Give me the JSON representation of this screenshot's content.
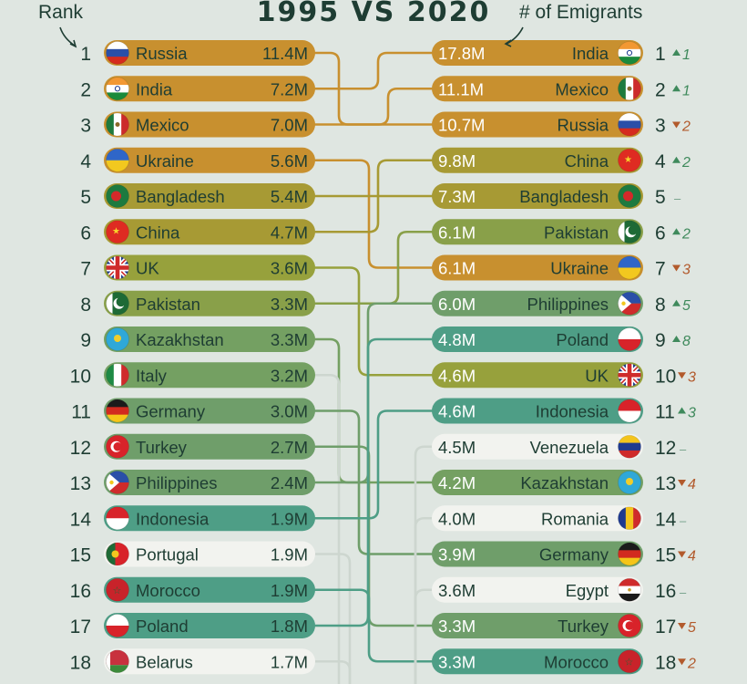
{
  "header": {
    "title": "1995 VS 2020",
    "rank_label": "Rank",
    "emigrants_label": "# of Emigrants"
  },
  "chart_data": {
    "type": "table",
    "title": "1995 VS 2020",
    "columns": [
      "Rank",
      "1995",
      "2020",
      "# of Emigrants"
    ],
    "left": [
      {
        "rank": "1",
        "country": "Russia",
        "value": "11.4M",
        "color": "#c8902f"
      },
      {
        "rank": "2",
        "country": "India",
        "value": "7.2M",
        "color": "#c8902f"
      },
      {
        "rank": "3",
        "country": "Mexico",
        "value": "7.0M",
        "color": "#c8902f"
      },
      {
        "rank": "4",
        "country": "Ukraine",
        "value": "5.6M",
        "color": "#c8902f"
      },
      {
        "rank": "5",
        "country": "Bangladesh",
        "value": "5.4M",
        "color": "#a79a34"
      },
      {
        "rank": "6",
        "country": "China",
        "value": "4.7M",
        "color": "#a79a34"
      },
      {
        "rank": "7",
        "country": "UK",
        "value": "3.6M",
        "color": "#97a13c"
      },
      {
        "rank": "8",
        "country": "Pakistan",
        "value": "3.3M",
        "color": "#89a049"
      },
      {
        "rank": "9",
        "country": "Kazakhstan",
        "value": "3.3M",
        "color": "#74a062"
      },
      {
        "rank": "10",
        "country": "Italy",
        "value": "3.2M",
        "color": "#74a062"
      },
      {
        "rank": "11",
        "country": "Germany",
        "value": "3.0M",
        "color": "#6f9e6a"
      },
      {
        "rank": "12",
        "country": "Turkey",
        "value": "2.7M",
        "color": "#6f9e6a"
      },
      {
        "rank": "13",
        "country": "Philippines",
        "value": "2.4M",
        "color": "#6f9e6a"
      },
      {
        "rank": "14",
        "country": "Indonesia",
        "value": "1.9M",
        "color": "#4e9e86"
      },
      {
        "rank": "15",
        "country": "Portugal",
        "value": "1.9M",
        "color": "#f2f3ef"
      },
      {
        "rank": "16",
        "country": "Morocco",
        "value": "1.9M",
        "color": "#4e9e86"
      },
      {
        "rank": "17",
        "country": "Poland",
        "value": "1.8M",
        "color": "#4e9e86"
      },
      {
        "rank": "18",
        "country": "Belarus",
        "value": "1.7M",
        "color": "#f2f3ef"
      }
    ],
    "right": [
      {
        "rank": "1",
        "country": "India",
        "value": "17.8M",
        "change": "1",
        "dir": "up",
        "color": "#c8902f"
      },
      {
        "rank": "2",
        "country": "Mexico",
        "value": "11.1M",
        "change": "1",
        "dir": "up",
        "color": "#c8902f"
      },
      {
        "rank": "3",
        "country": "Russia",
        "value": "10.7M",
        "change": "2",
        "dir": "down",
        "color": "#c8902f"
      },
      {
        "rank": "4",
        "country": "China",
        "value": "9.8M",
        "change": "2",
        "dir": "up",
        "color": "#a79a34"
      },
      {
        "rank": "5",
        "country": "Bangladesh",
        "value": "7.3M",
        "change": "–",
        "dir": "same",
        "color": "#a79a34"
      },
      {
        "rank": "6",
        "country": "Pakistan",
        "value": "6.1M",
        "change": "2",
        "dir": "up",
        "color": "#89a049"
      },
      {
        "rank": "7",
        "country": "Ukraine",
        "value": "6.1M",
        "change": "3",
        "dir": "down",
        "color": "#c8902f"
      },
      {
        "rank": "8",
        "country": "Philippines",
        "value": "6.0M",
        "change": "5",
        "dir": "up",
        "color": "#6f9e6a"
      },
      {
        "rank": "9",
        "country": "Poland",
        "value": "4.8M",
        "change": "8",
        "dir": "up",
        "color": "#4e9e86"
      },
      {
        "rank": "10",
        "country": "UK",
        "value": "4.6M",
        "change": "3",
        "dir": "down",
        "color": "#97a13c"
      },
      {
        "rank": "11",
        "country": "Indonesia",
        "value": "4.6M",
        "change": "3",
        "dir": "up",
        "color": "#4e9e86"
      },
      {
        "rank": "12",
        "country": "Venezuela",
        "value": "4.5M",
        "change": "–",
        "dir": "same",
        "color": "#f2f3ef"
      },
      {
        "rank": "13",
        "country": "Kazakhstan",
        "value": "4.2M",
        "change": "4",
        "dir": "down",
        "color": "#74a062"
      },
      {
        "rank": "14",
        "country": "Romania",
        "value": "4.0M",
        "change": "–",
        "dir": "same",
        "color": "#f2f3ef"
      },
      {
        "rank": "15",
        "country": "Germany",
        "value": "3.9M",
        "change": "4",
        "dir": "down",
        "color": "#6f9e6a"
      },
      {
        "rank": "16",
        "country": "Egypt",
        "value": "3.6M",
        "change": "–",
        "dir": "same",
        "color": "#f2f3ef"
      },
      {
        "rank": "17",
        "country": "Turkey",
        "value": "3.3M",
        "change": "5",
        "dir": "down",
        "color": "#6f9e6a"
      },
      {
        "rank": "18",
        "country": "Morocco",
        "value": "3.3M",
        "change": "2",
        "dir": "down",
        "color": "#4e9e86"
      }
    ]
  }
}
